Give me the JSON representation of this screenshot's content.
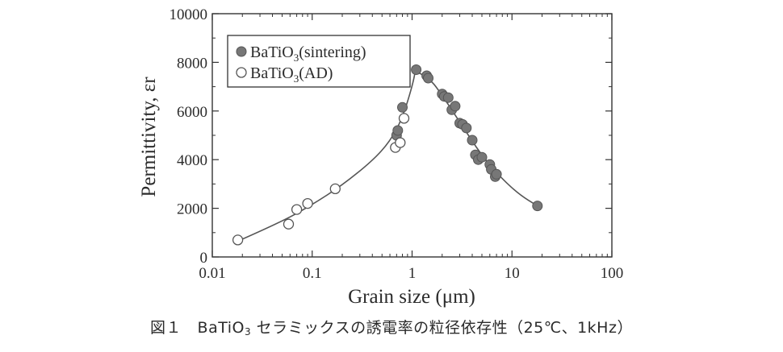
{
  "caption": {
    "prefix": "図１　BaTiO",
    "sub": "3",
    "suffix": " セラミックスの誘電率の粒径依存性（25℃、1kHz）"
  },
  "chart_data": {
    "type": "scatter",
    "xlabel": "Grain size (μm)",
    "ylabel": "Permittivity, εr",
    "xscale": "log",
    "xlim": [
      0.01,
      100
    ],
    "ylim": [
      0,
      10000
    ],
    "x_ticks": [
      0.01,
      0.1,
      1,
      10,
      100
    ],
    "x_tick_labels": [
      "0.01",
      "0.1",
      "1",
      "10",
      "100"
    ],
    "y_ticks": [
      0,
      2000,
      4000,
      6000,
      8000,
      10000
    ],
    "y_tick_labels": [
      "0",
      "2000",
      "4000",
      "6000",
      "8000",
      "10000"
    ],
    "legend_position": "top-left",
    "series": [
      {
        "name": "BaTiO3(sintering)",
        "legend_main": "BaTiO",
        "legend_sub": "3",
        "legend_tail": "(sintering)",
        "marker": "filled-circle",
        "color": "#777777",
        "points": [
          [
            0.7,
            5000
          ],
          [
            0.72,
            5200
          ],
          [
            0.8,
            6150
          ],
          [
            1.1,
            7700
          ],
          [
            1.4,
            7450
          ],
          [
            1.45,
            7350
          ],
          [
            2.0,
            6700
          ],
          [
            2.1,
            6600
          ],
          [
            2.3,
            6550
          ],
          [
            2.5,
            6050
          ],
          [
            2.7,
            6200
          ],
          [
            3.0,
            5500
          ],
          [
            3.2,
            5450
          ],
          [
            3.5,
            5300
          ],
          [
            4.0,
            4800
          ],
          [
            4.3,
            4200
          ],
          [
            4.6,
            4000
          ],
          [
            5.0,
            4100
          ],
          [
            6.0,
            3800
          ],
          [
            6.2,
            3600
          ],
          [
            6.8,
            3300
          ],
          [
            7.0,
            3400
          ],
          [
            18,
            2100
          ]
        ]
      },
      {
        "name": "BaTiO3(AD)",
        "legend_main": "BaTiO",
        "legend_sub": "3",
        "legend_tail": "(AD)",
        "marker": "open-circle",
        "color": "#777777",
        "points": [
          [
            0.018,
            700
          ],
          [
            0.058,
            1350
          ],
          [
            0.07,
            1950
          ],
          [
            0.09,
            2200
          ],
          [
            0.17,
            2800
          ],
          [
            0.68,
            4500
          ],
          [
            0.76,
            4700
          ],
          [
            0.83,
            5700
          ]
        ]
      }
    ],
    "fit_curves": [
      {
        "points": [
          [
            0.018,
            650
          ],
          [
            0.05,
            1450
          ],
          [
            0.1,
            2150
          ],
          [
            0.2,
            2950
          ],
          [
            0.4,
            3950
          ],
          [
            0.6,
            4750
          ],
          [
            0.8,
            5700
          ],
          [
            1.0,
            7000
          ],
          [
            1.08,
            7650
          ]
        ]
      },
      {
        "points": [
          [
            1.08,
            7650
          ],
          [
            1.5,
            7350
          ],
          [
            2.0,
            6650
          ],
          [
            3.0,
            5550
          ],
          [
            5.0,
            4150
          ],
          [
            8.0,
            3200
          ],
          [
            12.0,
            2550
          ],
          [
            18.0,
            2100
          ]
        ]
      }
    ]
  }
}
